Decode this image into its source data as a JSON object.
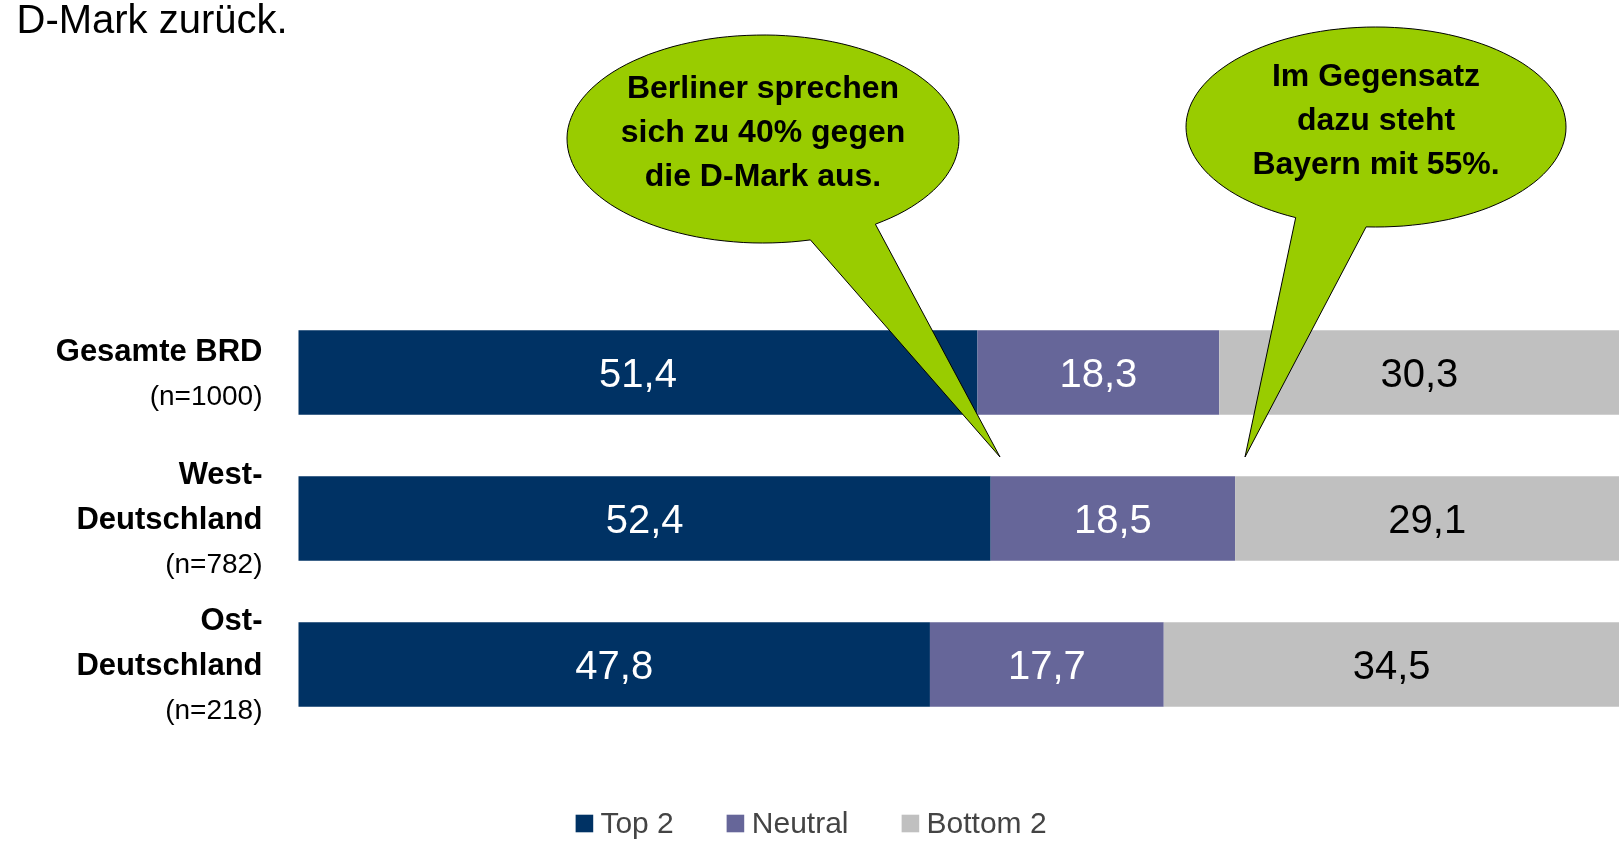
{
  "chart_data": {
    "type": "bar",
    "orientation": "horizontal",
    "stacked": true,
    "title": "D-Mark zurück.",
    "categories": [
      "Gesamte BRD\n(n=1000)",
      "West-\nDeutschland\n(n=782)",
      "Ost-\nDeutschland\n(n=218)"
    ],
    "series": [
      {
        "name": "Top 2",
        "color": "#003264",
        "values": [
          51.4,
          52.4,
          47.8
        ],
        "value_labels": [
          "51,4",
          "52,4",
          "47,8"
        ]
      },
      {
        "name": "Neutral",
        "color": "#666699",
        "values": [
          18.3,
          18.5,
          17.7
        ],
        "value_labels": [
          "18,3",
          "18,5",
          "17,7"
        ]
      },
      {
        "name": "Bottom 2",
        "color": "#c0c0c0",
        "values": [
          30.3,
          29.1,
          34.5
        ],
        "value_labels": [
          "30,3",
          "29,1",
          "34,5"
        ]
      }
    ],
    "annotations": [
      "Berliner sprechen\nsich zu 40% gegen\ndie D-Mark aus.",
      "Im Gegensatz\ndazu steht\nBayern mit 55%."
    ],
    "legend": "bottom",
    "grid": false
  }
}
